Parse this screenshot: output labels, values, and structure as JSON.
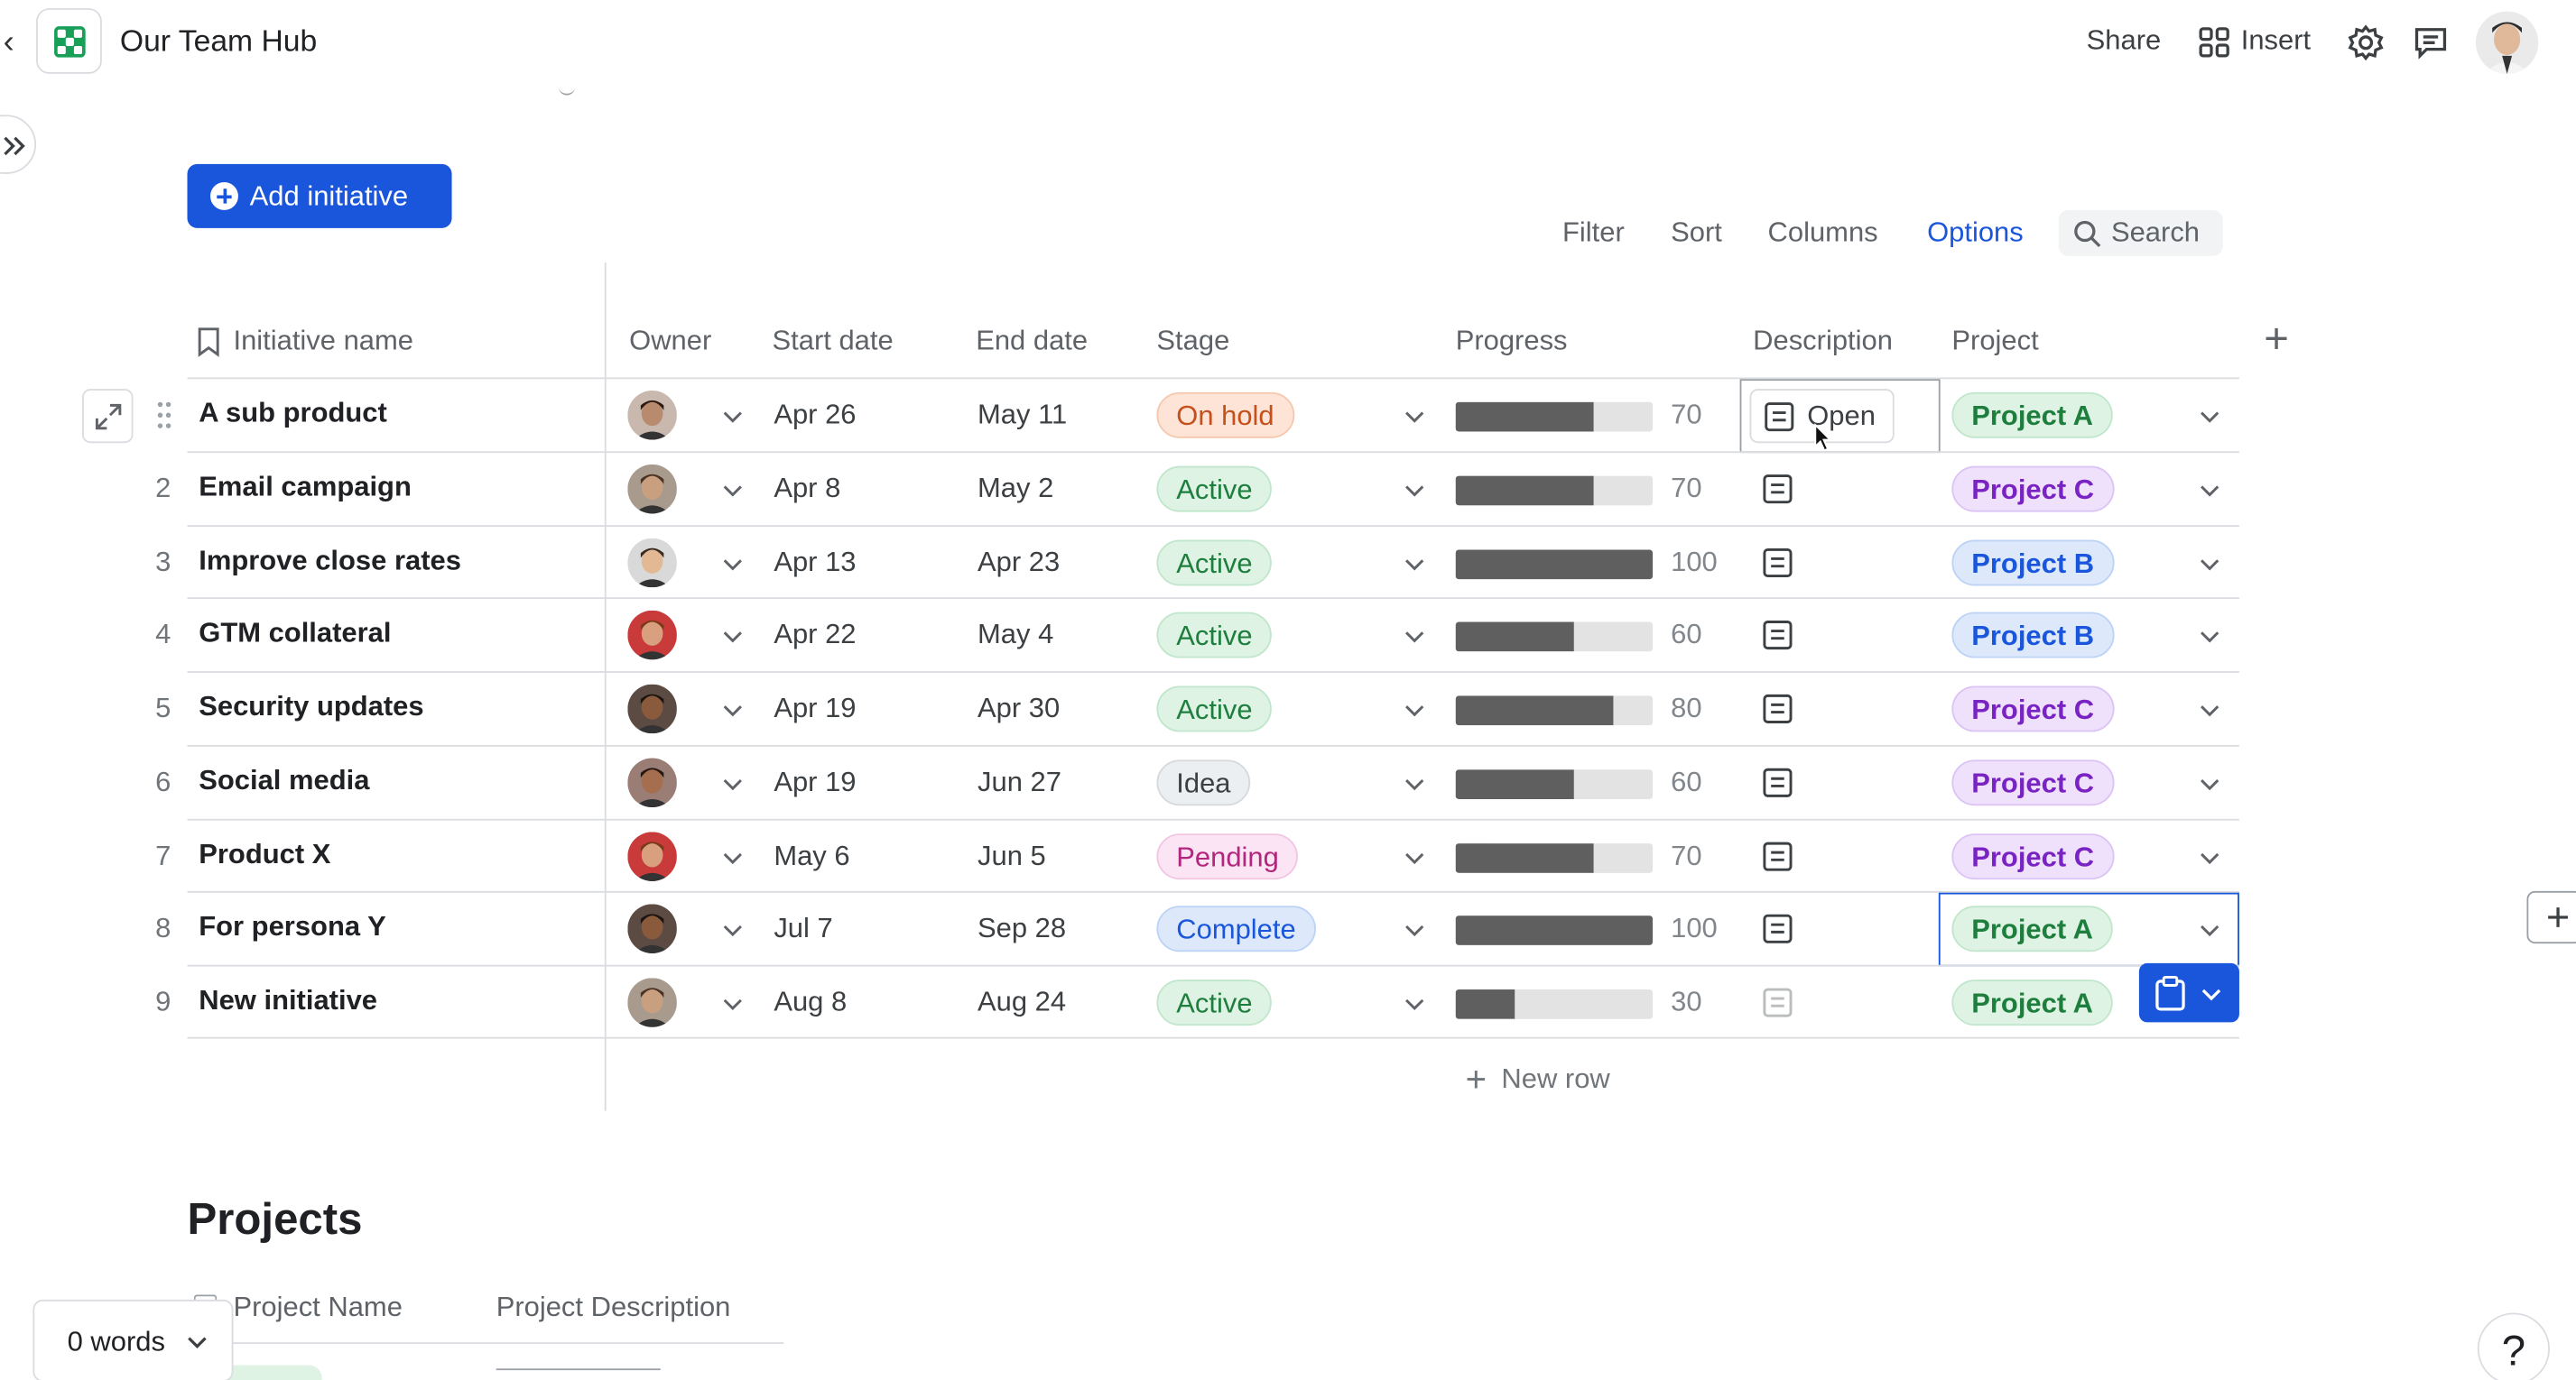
{
  "app": {
    "title": "Our Team Hub",
    "brand_color": "#18a058"
  },
  "header": {
    "share": "Share",
    "insert": "Insert"
  },
  "actions": {
    "add_initiative": "Add initiative"
  },
  "toolbar": {
    "filter": "Filter",
    "sort": "Sort",
    "columns": "Columns",
    "options": "Options",
    "search_placeholder": "Search"
  },
  "table": {
    "headers": {
      "name": "Initiative name",
      "owner": "Owner",
      "start": "Start date",
      "end": "End date",
      "stage": "Stage",
      "progress": "Progress",
      "description": "Description",
      "project": "Project"
    },
    "open_label": "Open",
    "rows": [
      {
        "num": "",
        "name": "A sub product",
        "start": "Apr 26",
        "end": "May 11",
        "stage": "On hold",
        "stage_class": "st-onhold",
        "progress": 70,
        "project": "Project A",
        "proj_class": "pj-a"
      },
      {
        "num": "2",
        "name": "Email campaign",
        "start": "Apr 8",
        "end": "May 2",
        "stage": "Active",
        "stage_class": "st-active",
        "progress": 70,
        "project": "Project C",
        "proj_class": "pj-c"
      },
      {
        "num": "3",
        "name": "Improve close rates",
        "start": "Apr 13",
        "end": "Apr 23",
        "stage": "Active",
        "stage_class": "st-active",
        "progress": 100,
        "project": "Project B",
        "proj_class": "pj-b"
      },
      {
        "num": "4",
        "name": "GTM collateral",
        "start": "Apr 22",
        "end": "May 4",
        "stage": "Active",
        "stage_class": "st-active",
        "progress": 60,
        "project": "Project B",
        "proj_class": "pj-b"
      },
      {
        "num": "5",
        "name": "Security updates",
        "start": "Apr 19",
        "end": "Apr 30",
        "stage": "Active",
        "stage_class": "st-active",
        "progress": 80,
        "project": "Project C",
        "proj_class": "pj-c"
      },
      {
        "num": "6",
        "name": "Social media",
        "start": "Apr 19",
        "end": "Jun 27",
        "stage": "Idea",
        "stage_class": "st-idea",
        "progress": 60,
        "project": "Project C",
        "proj_class": "pj-c"
      },
      {
        "num": "7",
        "name": "Product X",
        "start": "May 6",
        "end": "Jun 5",
        "stage": "Pending",
        "stage_class": "st-pending",
        "progress": 70,
        "project": "Project C",
        "proj_class": "pj-c"
      },
      {
        "num": "8",
        "name": "For persona Y",
        "start": "Jul 7",
        "end": "Sep 28",
        "stage": "Complete",
        "stage_class": "st-complete",
        "progress": 100,
        "project": "Project A",
        "proj_class": "pj-a"
      },
      {
        "num": "9",
        "name": "New initiative",
        "start": "Aug 8",
        "end": "Aug 24",
        "stage": "Active",
        "stage_class": "st-active",
        "progress": 30,
        "project": "Project A",
        "proj_class": "pj-a"
      }
    ],
    "new_row": "New row"
  },
  "projects": {
    "title": "Projects",
    "col_name": "Project Name",
    "col_desc": "Project Description"
  },
  "footer": {
    "word_count": "0 words",
    "help": "?"
  }
}
